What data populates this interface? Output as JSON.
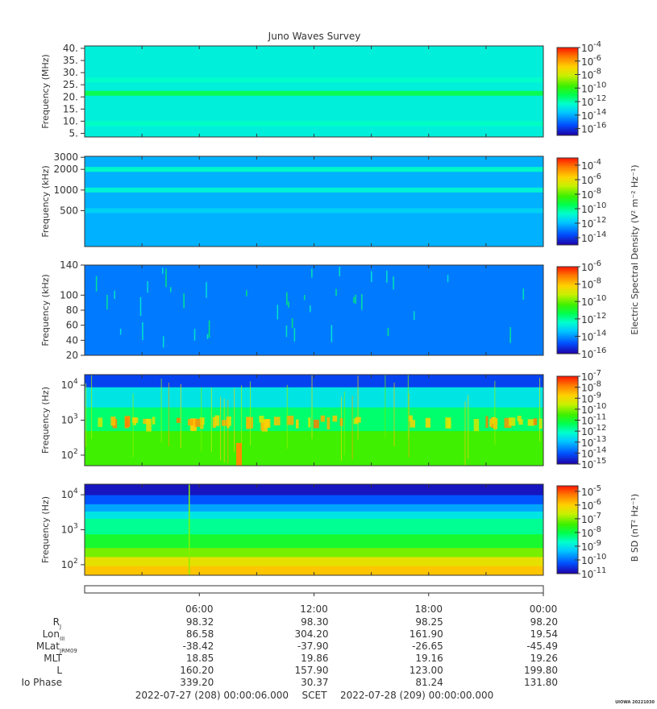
{
  "chart_data": {
    "type": "heatmap",
    "title": "Juno Waves Survey",
    "time_axis": {
      "ticks": [
        "06:00",
        "12:00",
        "18:00",
        "00:00"
      ],
      "start": "2022-07-27 (208) 00:00:06.000",
      "label": "SCET",
      "end": "2022-07-28 (209) 00:00:00.000"
    },
    "ephemeris": {
      "rows": [
        {
          "label": "R",
          "sub": "J",
          "values": [
            "98.32",
            "98.30",
            "98.25",
            "98.20"
          ]
        },
        {
          "label": "Lon",
          "sub": "III",
          "values": [
            "86.58",
            "304.20",
            "161.90",
            "19.54"
          ]
        },
        {
          "label": "MLat",
          "sub": "JRM09",
          "values": [
            "-38.42",
            "-37.90",
            "-26.65",
            "-45.49"
          ]
        },
        {
          "label": "MLT",
          "sub": "",
          "values": [
            "18.85",
            "19.86",
            "19.16",
            "19.26"
          ]
        },
        {
          "label": "L",
          "sub": "",
          "values": [
            "160.20",
            "157.90",
            "123.00",
            "199.80"
          ]
        },
        {
          "label": "Io Phase",
          "sub": "",
          "values": [
            "339.20",
            "30.37",
            "81.24",
            "131.80"
          ]
        }
      ]
    },
    "panels": [
      {
        "name": "high-band",
        "ylabel": "Frequency (MHz)",
        "yscale": "linear",
        "ylim": [
          3.5,
          41
        ],
        "yticks": [
          "40.",
          "35.",
          "30.",
          "25.",
          "20.",
          "15.",
          "10.",
          "5."
        ],
        "ytick_values": [
          40,
          35,
          30,
          25,
          20,
          15,
          10,
          5
        ],
        "background_level": -12.7,
        "bands": [
          {
            "freq": 21.5,
            "level": -10.8
          },
          {
            "freq": 9.0,
            "level": -12.2
          },
          {
            "freq": 27.0,
            "level": -12.3
          }
        ],
        "colorbar": {
          "ticks": [
            "-4",
            "-6",
            "-8",
            "-10",
            "-12",
            "-14",
            "-16"
          ],
          "tick_values": [
            -4,
            -6,
            -8,
            -10,
            -12,
            -14,
            -16
          ],
          "range": [
            -17,
            -4
          ]
        }
      },
      {
        "name": "mid-band",
        "ylabel": "Frequency (kHz)",
        "yscale": "log",
        "ylim": [
          150,
          3100
        ],
        "yticks": [
          "3000",
          "2000",
          "1000",
          "500"
        ],
        "ytick_values": [
          3000,
          2000,
          1000,
          500
        ],
        "background_level": -12.2,
        "bands": [
          {
            "freq": 2000,
            "level": -10.6
          },
          {
            "freq": 1000,
            "level": -10.8
          },
          {
            "freq": 500,
            "level": -11.6
          }
        ],
        "colorbar": {
          "ticks": [
            "-4",
            "-6",
            "-8",
            "-10",
            "-12",
            "-14"
          ],
          "tick_values": [
            -4,
            -6,
            -8,
            -10,
            -12,
            -14
          ],
          "range": [
            -15,
            -3
          ]
        }
      },
      {
        "name": "low-band-khz",
        "ylabel": "Frequency (kHz)",
        "yscale": "linear",
        "ylim": [
          20,
          140
        ],
        "yticks": [
          "140",
          "100",
          "80",
          "60",
          "40",
          "20"
        ],
        "ytick_values": [
          140,
          100,
          80,
          60,
          40,
          20
        ],
        "background_level": -14.3,
        "colorbar": {
          "ticks": [
            "-6",
            "-8",
            "-10",
            "-12",
            "-14",
            "-16"
          ],
          "tick_values": [
            -6,
            -8,
            -10,
            -12,
            -14,
            -16
          ],
          "range": [
            -16,
            -6
          ]
        }
      },
      {
        "name": "low-band-hz",
        "ylabel": "Frequency (Hz)",
        "yscale": "log",
        "ylim": [
          50,
          20000
        ],
        "yticks": [
          "4",
          "3",
          "2"
        ],
        "ytick_values": [
          10000,
          1000,
          100
        ],
        "background_level": -11.5,
        "colorbar": {
          "ticks": [
            "-7",
            "-8",
            "-9",
            "-10",
            "-11",
            "-12",
            "-13",
            "-14",
            "-15"
          ],
          "tick_values": [
            -7,
            -8,
            -9,
            -10,
            -11,
            -12,
            -13,
            -14,
            -15
          ],
          "range": [
            -15,
            -7
          ]
        }
      },
      {
        "name": "magnetic",
        "ylabel": "Frequency (Hz)",
        "yscale": "log",
        "ylim": [
          50,
          20000
        ],
        "yticks": [
          "4",
          "3",
          "2"
        ],
        "ytick_values": [
          10000,
          1000,
          100
        ],
        "background_level": -8.5,
        "colorbar": {
          "ticks": [
            "-5",
            "-6",
            "-7",
            "-8",
            "-9",
            "-10",
            "-11"
          ],
          "tick_values": [
            -5,
            -6,
            -7,
            -8,
            -9,
            -10,
            -11
          ],
          "range": [
            -11,
            -4.6
          ]
        }
      }
    ],
    "colorbar_labels": {
      "electric": "Electric Spectral Density (V² m⁻² Hz⁻¹)",
      "magnetic": "B SD (nT² Hz⁻¹)"
    },
    "tick_base": "10",
    "credit": "UIOWA 20221030"
  }
}
